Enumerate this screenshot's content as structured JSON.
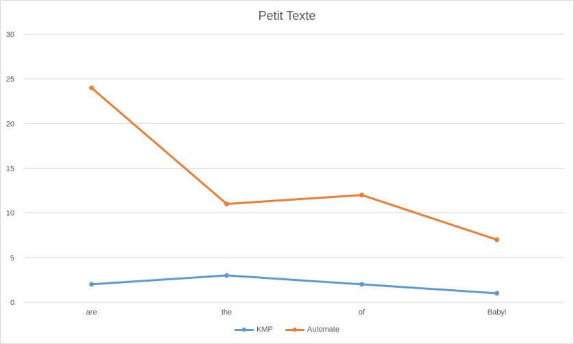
{
  "chart_data": {
    "type": "line",
    "title": "Petit Texte",
    "categories": [
      "are",
      "the",
      "of",
      "Babyl"
    ],
    "series": [
      {
        "name": "KMP",
        "values": [
          2,
          3,
          2,
          1
        ],
        "color": "#5b9bd5"
      },
      {
        "name": "Automate",
        "values": [
          24,
          11,
          12,
          7
        ],
        "color": "#ed7d31"
      }
    ],
    "y_ticks": [
      "0",
      "5",
      "10",
      "15",
      "20",
      "25",
      "30"
    ],
    "ylim": [
      0,
      30
    ],
    "grid": true,
    "legend_position": "bottom",
    "colors": {
      "gridline": "#d9d9d9",
      "text": "#595959"
    }
  }
}
